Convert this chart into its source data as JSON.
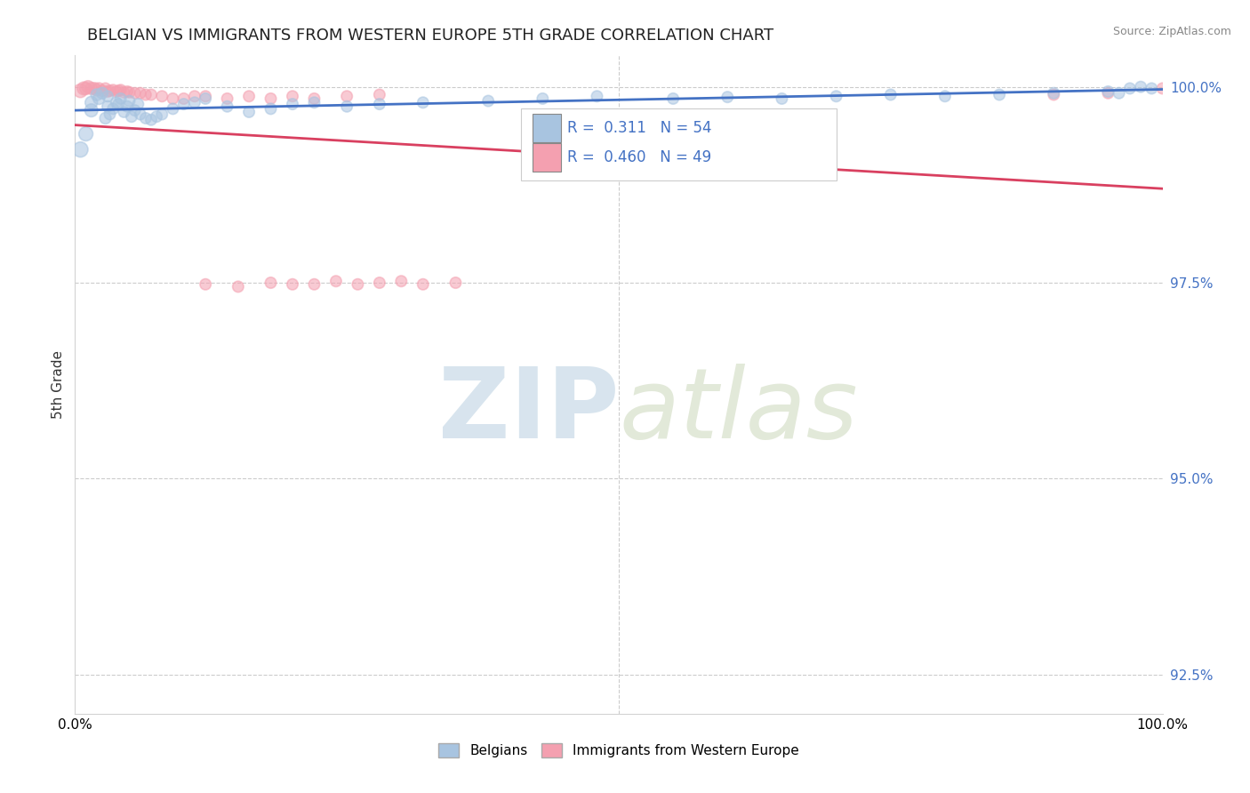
{
  "title": "BELGIAN VS IMMIGRANTS FROM WESTERN EUROPE 5TH GRADE CORRELATION CHART",
  "source": "Source: ZipAtlas.com",
  "ylabel": "5th Grade",
  "xlim": [
    0.0,
    1.0
  ],
  "ylim": [
    0.92,
    1.004
  ],
  "yticks": [
    0.925,
    0.95,
    0.975,
    1.0
  ],
  "ytick_labels": [
    "92.5%",
    "95.0%",
    "97.5%",
    "100.0%"
  ],
  "belgians_R": 0.311,
  "belgians_N": 54,
  "immigrants_R": 0.46,
  "immigrants_N": 49,
  "belgians_color": "#a8c4e0",
  "immigrants_color": "#f4a0b0",
  "belgians_line_color": "#4472c4",
  "immigrants_line_color": "#d94060",
  "belgians_x": [
    0.005,
    0.01,
    0.015,
    0.015,
    0.02,
    0.022,
    0.025,
    0.028,
    0.03,
    0.03,
    0.032,
    0.035,
    0.038,
    0.04,
    0.042,
    0.045,
    0.048,
    0.05,
    0.052,
    0.055,
    0.058,
    0.06,
    0.065,
    0.07,
    0.075,
    0.08,
    0.09,
    0.1,
    0.11,
    0.12,
    0.14,
    0.16,
    0.18,
    0.2,
    0.22,
    0.25,
    0.28,
    0.32,
    0.38,
    0.43,
    0.48,
    0.55,
    0.6,
    0.65,
    0.7,
    0.75,
    0.8,
    0.85,
    0.9,
    0.95,
    0.96,
    0.97,
    0.98,
    0.99
  ],
  "belgians_y": [
    0.992,
    0.994,
    0.997,
    0.998,
    0.999,
    0.9985,
    0.9992,
    0.996,
    0.9975,
    0.9988,
    0.9965,
    0.9972,
    0.998,
    0.9978,
    0.9985,
    0.9968,
    0.9975,
    0.9982,
    0.9962,
    0.997,
    0.9978,
    0.9965,
    0.996,
    0.9958,
    0.9962,
    0.9965,
    0.9972,
    0.9978,
    0.998,
    0.9985,
    0.9975,
    0.9968,
    0.9972,
    0.9978,
    0.998,
    0.9975,
    0.9978,
    0.998,
    0.9982,
    0.9985,
    0.9988,
    0.9985,
    0.9987,
    0.9985,
    0.9988,
    0.999,
    0.9988,
    0.999,
    0.9992,
    0.9994,
    0.9992,
    0.9998,
    1.0,
    0.9998
  ],
  "belgians_size": [
    150,
    130,
    110,
    100,
    90,
    90,
    85,
    85,
    80,
    80,
    80,
    80,
    80,
    80,
    80,
    80,
    80,
    80,
    80,
    80,
    80,
    80,
    80,
    80,
    80,
    80,
    80,
    80,
    80,
    80,
    80,
    80,
    80,
    80,
    80,
    80,
    80,
    80,
    80,
    80,
    80,
    80,
    80,
    80,
    80,
    80,
    80,
    80,
    80,
    80,
    80,
    80,
    80,
    80
  ],
  "immigrants_x": [
    0.005,
    0.008,
    0.01,
    0.012,
    0.015,
    0.018,
    0.02,
    0.022,
    0.025,
    0.028,
    0.03,
    0.032,
    0.035,
    0.038,
    0.04,
    0.042,
    0.045,
    0.048,
    0.05,
    0.055,
    0.06,
    0.065,
    0.07,
    0.08,
    0.09,
    0.1,
    0.11,
    0.12,
    0.14,
    0.16,
    0.18,
    0.2,
    0.22,
    0.25,
    0.28,
    0.12,
    0.15,
    0.18,
    0.2,
    0.22,
    0.24,
    0.26,
    0.28,
    0.3,
    0.32,
    0.35,
    0.9,
    0.95,
    1.0
  ],
  "immigrants_y": [
    0.9995,
    0.9998,
    0.9998,
    1.0,
    0.9998,
    0.9998,
    0.9996,
    0.9998,
    0.9995,
    0.9998,
    0.9994,
    0.9995,
    0.9996,
    0.9994,
    0.9995,
    0.9996,
    0.9993,
    0.9994,
    0.9993,
    0.9992,
    0.9992,
    0.999,
    0.999,
    0.9988,
    0.9985,
    0.9985,
    0.9988,
    0.9988,
    0.9985,
    0.9988,
    0.9985,
    0.9988,
    0.9985,
    0.9988,
    0.999,
    0.9748,
    0.9745,
    0.975,
    0.9748,
    0.9748,
    0.9752,
    0.9748,
    0.975,
    0.9752,
    0.9748,
    0.975,
    0.999,
    0.9992,
    0.9998
  ],
  "immigrants_size": [
    120,
    110,
    100,
    100,
    95,
    90,
    90,
    85,
    85,
    80,
    80,
    80,
    80,
    80,
    80,
    80,
    80,
    80,
    80,
    80,
    80,
    80,
    80,
    80,
    80,
    80,
    80,
    80,
    80,
    80,
    80,
    80,
    80,
    80,
    80,
    80,
    80,
    80,
    80,
    80,
    80,
    80,
    80,
    80,
    80,
    80,
    80,
    80,
    80
  ]
}
